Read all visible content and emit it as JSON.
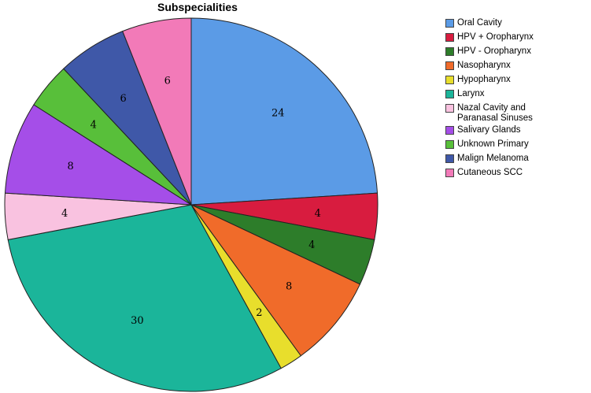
{
  "chart_data": {
    "type": "pie",
    "title": "Subspecialities",
    "legend_position": "right",
    "slices": [
      {
        "label": "Oral Cavity",
        "value": 24,
        "color": "#5b9be6"
      },
      {
        "label": "HPV + Oropharynx",
        "value": 4,
        "color": "#d81c3f"
      },
      {
        "label": "HPV - Oropharynx",
        "value": 4,
        "color": "#2d7d2a"
      },
      {
        "label": "Nasopharynx",
        "value": 8,
        "color": "#f06b2a"
      },
      {
        "label": "Hypopharynx",
        "value": 2,
        "color": "#e8de2c"
      },
      {
        "label": "Larynx",
        "value": 30,
        "color": "#1bb59a"
      },
      {
        "label": "Nazal Cavity and Paranasal Sinuses",
        "value": 4,
        "color": "#f9c2e0"
      },
      {
        "label": "Salivary Glands",
        "value": 8,
        "color": "#a54ee8"
      },
      {
        "label": "Unknown Primary",
        "value": 4,
        "color": "#58bf3a"
      },
      {
        "label": "Malign Melanoma",
        "value": 6,
        "color": "#3f58a8"
      },
      {
        "label": "Cutaneous SCC",
        "value": 6,
        "color": "#f27ab8"
      }
    ]
  }
}
